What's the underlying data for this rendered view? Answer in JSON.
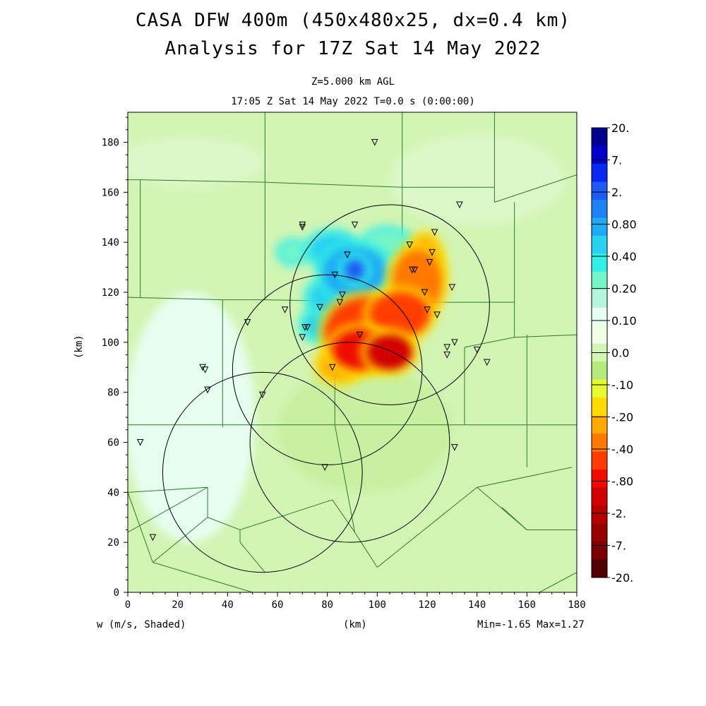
{
  "chart_data": {
    "type": "heatmap",
    "title": "CASA DFW 400m (450x480x25, dx=0.4 km)",
    "subtitle": "Analysis for 17Z Sat 14 May 2022",
    "level_label": "Z=5.000 km AGL",
    "time_label": "17:05 Z Sat 14 May 2022   T=0.0 s (0:00:00)",
    "field_label": "w (m/s, Shaded)",
    "xlabel": "(km)",
    "ylabel": "(km)",
    "xlim": [
      0,
      180
    ],
    "ylim": [
      0,
      192
    ],
    "x_ticks": [
      "0",
      "20",
      "40",
      "60",
      "80",
      "100",
      "120",
      "140",
      "160",
      "180"
    ],
    "y_ticks": [
      "0",
      "20",
      "40",
      "60",
      "80",
      "100",
      "120",
      "140",
      "160",
      "180"
    ],
    "minmax_label": "Min=-1.65 Max=1.27",
    "min": -1.65,
    "max": 1.27,
    "colorbar": {
      "labels": [
        "20.",
        "7.",
        "2.",
        "0.80",
        "0.40",
        "0.20",
        "0.10",
        "0.0",
        "-.10",
        "-.20",
        "-.40",
        "-.80",
        "-2.",
        "-7.",
        "-20."
      ],
      "colors": [
        "#00008c",
        "#0000c8",
        "#0a28f0",
        "#1e5af5",
        "#1e82f5",
        "#1eaaf5",
        "#28d2f0",
        "#32f0e6",
        "#78f5c8",
        "#b4f5dc",
        "#e6fff0",
        "#f0ffe6",
        "#d2f5b4",
        "#b4eb7d",
        "#e6fa32",
        "#ffdc00",
        "#ffaa00",
        "#ff7800",
        "#ff3c00",
        "#f00a00",
        "#d20000",
        "#b40000",
        "#960000",
        "#780000",
        "#500000"
      ]
    },
    "radar_circles": [
      {
        "cx": 105,
        "cy": 115,
        "r": 40
      },
      {
        "cx": 80,
        "cy": 89,
        "r": 38
      },
      {
        "cx": 54,
        "cy": 48,
        "r": 40
      },
      {
        "cx": 89,
        "cy": 60,
        "r": 40
      }
    ],
    "stations": [
      [
        99,
        180
      ],
      [
        133,
        155
      ],
      [
        70,
        147
      ],
      [
        70,
        146
      ],
      [
        91,
        147
      ],
      [
        123,
        144
      ],
      [
        113,
        139
      ],
      [
        88,
        135
      ],
      [
        122,
        136
      ],
      [
        121,
        132
      ],
      [
        114,
        129
      ],
      [
        115,
        129
      ],
      [
        83,
        127
      ],
      [
        130,
        122
      ],
      [
        119,
        120
      ],
      [
        86,
        119
      ],
      [
        85,
        116
      ],
      [
        77,
        114
      ],
      [
        63,
        113
      ],
      [
        120,
        113
      ],
      [
        124,
        111
      ],
      [
        71,
        106
      ],
      [
        72,
        106
      ],
      [
        48,
        108
      ],
      [
        70,
        102
      ],
      [
        93,
        103
      ],
      [
        131,
        100
      ],
      [
        128,
        98
      ],
      [
        140,
        97
      ],
      [
        128,
        95
      ],
      [
        144,
        92
      ],
      [
        82,
        90
      ],
      [
        30,
        90
      ],
      [
        31,
        89
      ],
      [
        32,
        81
      ],
      [
        54,
        79
      ],
      [
        5,
        60
      ],
      [
        131,
        58
      ],
      [
        79,
        50
      ],
      [
        10,
        22
      ]
    ],
    "updraft_cells": [
      {
        "x": 96,
        "y": 104,
        "rx": 17,
        "ry": 14,
        "v": -1.0
      },
      {
        "x": 93,
        "y": 97,
        "rx": 11,
        "ry": 8,
        "v": -1.4
      },
      {
        "x": 109,
        "y": 111,
        "rx": 12,
        "ry": 9,
        "v": -1.1
      },
      {
        "x": 116,
        "y": 124,
        "rx": 10,
        "ry": 13,
        "v": -0.8
      },
      {
        "x": 119,
        "y": 132,
        "rx": 6,
        "ry": 10,
        "v": -0.6
      },
      {
        "x": 85,
        "y": 91,
        "rx": 8,
        "ry": 6,
        "v": -0.7
      },
      {
        "x": 105,
        "y": 96,
        "rx": 9,
        "ry": 7,
        "v": -1.65
      }
    ],
    "downdraft_cells": [
      {
        "x": 91,
        "y": 128,
        "rx": 13,
        "ry": 10,
        "v": 0.5
      },
      {
        "x": 91,
        "y": 129,
        "rx": 4,
        "ry": 4,
        "v": 1.27
      },
      {
        "x": 82,
        "y": 137,
        "rx": 9,
        "ry": 6,
        "v": 0.3
      },
      {
        "x": 80,
        "y": 118,
        "rx": 7,
        "ry": 6,
        "v": 0.25
      },
      {
        "x": 77,
        "y": 107,
        "rx": 6,
        "ry": 5,
        "v": 0.2
      },
      {
        "x": 66,
        "y": 136,
        "rx": 4,
        "ry": 3,
        "v": 0.15
      },
      {
        "x": 104,
        "y": 140,
        "rx": 8,
        "ry": 4,
        "v": 0.15
      }
    ]
  }
}
